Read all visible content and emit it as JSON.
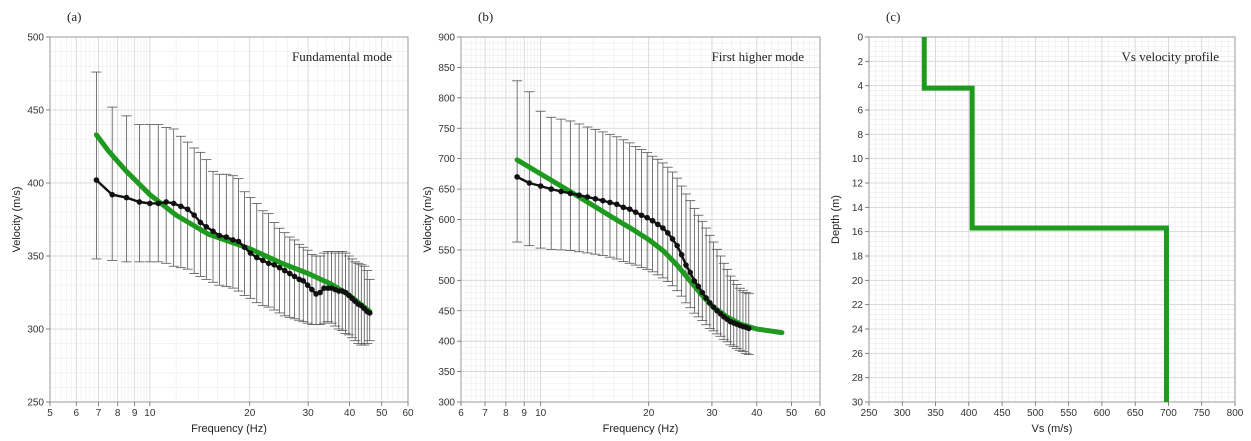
{
  "figure": {
    "colors": {
      "model": "#1e9a1e",
      "observed": "#111111",
      "errorbar": "#555555",
      "grid_major": "#d4d4d4",
      "grid_minor": "#ececec",
      "frame": "#9a9a9a"
    }
  },
  "chart_data": [
    {
      "type": "line",
      "panel_label": "(a)",
      "title": "Fundamental mode",
      "xlabel": "Frequency (Hz)",
      "ylabel": "Velocity (m/s)",
      "x_scale": "log",
      "xlim": [
        5,
        60
      ],
      "ylim": [
        250,
        500
      ],
      "x_tick_labels": [
        "5",
        "6",
        "7",
        "8",
        "9",
        "10",
        "20",
        "30",
        "40",
        "50",
        "60"
      ],
      "x_ticks": [
        5,
        6,
        7,
        8,
        9,
        10,
        20,
        30,
        40,
        50,
        60
      ],
      "y_ticks": [
        250,
        300,
        350,
        400,
        450,
        500
      ],
      "y_tick_labels": [
        "250",
        "300",
        "350",
        "400",
        "450",
        "500"
      ],
      "series": [
        {
          "kind": "model",
          "x": [
            6.9,
            7.5,
            8.5,
            10,
            12,
            15,
            20,
            25,
            30,
            35,
            40,
            46
          ],
          "y": [
            433,
            422,
            408,
            392,
            378,
            365,
            355,
            345,
            338,
            331,
            323,
            312
          ]
        },
        {
          "kind": "observed",
          "x": [
            6.9,
            7.7,
            8.5,
            9.3,
            10.0,
            10.6,
            11.2,
            11.8,
            12.4,
            13.0,
            13.6,
            14.2,
            14.8,
            15.5,
            16.2,
            17.0,
            17.8,
            18.5,
            19.3,
            20.1,
            21.0,
            21.9,
            22.8,
            23.7,
            24.6,
            25.5,
            26.4,
            27.3,
            28.2,
            29.0,
            29.9,
            30.8,
            31.7,
            32.6,
            33.5,
            34.4,
            35.3,
            36.2,
            37.1,
            38.0,
            38.9,
            39.8,
            40.7,
            41.6,
            42.5,
            43.4,
            44.3,
            45.2,
            46.0
          ],
          "y": [
            402,
            392,
            390,
            387,
            386,
            386,
            387,
            386,
            384,
            382,
            378,
            373,
            370,
            367,
            364,
            363,
            361,
            360,
            356,
            352,
            349,
            347,
            345,
            344,
            342,
            340,
            338,
            336,
            334,
            333,
            330,
            327,
            324,
            325,
            328,
            328,
            328,
            327,
            326,
            326,
            325,
            323,
            321,
            319,
            317,
            316,
            314,
            312,
            311
          ],
          "error": [
            [
              348,
              476
            ],
            [
              347,
              452
            ],
            [
              346,
              446
            ],
            [
              346,
              440
            ],
            [
              346,
              440
            ],
            [
              346,
              440
            ],
            [
              345,
              438
            ],
            [
              343,
              437
            ],
            [
              342,
              432
            ],
            [
              341,
              428
            ],
            [
              338,
              424
            ],
            [
              336,
              421
            ],
            [
              334,
              416
            ],
            [
              332,
              408
            ],
            [
              330,
              406
            ],
            [
              329,
              406
            ],
            [
              328,
              405
            ],
            [
              326,
              403
            ],
            [
              323,
              394
            ],
            [
              321,
              390
            ],
            [
              318,
              386
            ],
            [
              316,
              381
            ],
            [
              315,
              379
            ],
            [
              313,
              373
            ],
            [
              311,
              369
            ],
            [
              309,
              366
            ],
            [
              308,
              363
            ],
            [
              307,
              361
            ],
            [
              306,
              358
            ],
            [
              305,
              356
            ],
            [
              304,
              354
            ],
            [
              303,
              351
            ],
            [
              303,
              350
            ],
            [
              303,
              350
            ],
            [
              304,
              352
            ],
            [
              305,
              353
            ],
            [
              304,
              353
            ],
            [
              302,
              352
            ],
            [
              300,
              353
            ],
            [
              299,
              353
            ],
            [
              297,
              352
            ],
            [
              296,
              350
            ],
            [
              294,
              348
            ],
            [
              292,
              346
            ],
            [
              290,
              345
            ],
            [
              289,
              344
            ],
            [
              289,
              343
            ],
            [
              290,
              340
            ],
            [
              292,
              334
            ]
          ]
        }
      ]
    },
    {
      "type": "line",
      "panel_label": "(b)",
      "title": "First higher mode",
      "xlabel": "Frequency (Hz)",
      "ylabel": "Velocity (m/s)",
      "x_scale": "log",
      "xlim": [
        6,
        60
      ],
      "ylim": [
        300,
        900
      ],
      "x_tick_labels": [
        "6",
        "7",
        "8",
        "9",
        "10",
        "20",
        "30",
        "40",
        "50",
        "60"
      ],
      "x_ticks": [
        6,
        7,
        8,
        9,
        10,
        20,
        30,
        40,
        50,
        60
      ],
      "y_ticks": [
        300,
        350,
        400,
        450,
        500,
        550,
        600,
        650,
        700,
        750,
        800,
        850,
        900
      ],
      "y_tick_labels": [
        "300",
        "350",
        "400",
        "450",
        "500",
        "550",
        "600",
        "650",
        "700",
        "750",
        "800",
        "850",
        "900"
      ],
      "series": [
        {
          "kind": "model",
          "x": [
            8.6,
            10,
            12,
            14,
            16,
            18,
            20,
            22,
            24,
            26,
            28,
            30,
            33,
            36,
            40,
            47
          ],
          "y": [
            698,
            675,
            647,
            623,
            602,
            584,
            567,
            548,
            525,
            500,
            477,
            458,
            440,
            428,
            420,
            414
          ],
          "draw_x": [
            8.6,
            10,
            12,
            14,
            16,
            18,
            20,
            22,
            24,
            26,
            28,
            30,
            33,
            36,
            40,
            47
          ]
        },
        {
          "kind": "observed",
          "x": [
            8.6,
            9.3,
            10.0,
            10.7,
            11.4,
            12.1,
            12.8,
            13.5,
            14.2,
            14.9,
            15.6,
            16.3,
            17.0,
            17.7,
            18.4,
            19.1,
            19.8,
            20.5,
            21.2,
            21.9,
            22.6,
            23.3,
            24.0,
            24.7,
            25.4,
            26.1,
            26.8,
            27.5,
            28.2,
            28.9,
            29.6,
            30.3,
            31.0,
            31.7,
            32.4,
            33.1,
            33.8,
            34.5,
            35.2,
            35.9,
            36.6,
            37.3,
            38.0
          ],
          "y": [
            670,
            660,
            655,
            650,
            646,
            643,
            640,
            637,
            634,
            631,
            628,
            625,
            620,
            617,
            612,
            607,
            603,
            598,
            592,
            586,
            578,
            568,
            557,
            542,
            525,
            513,
            499,
            490,
            480,
            471,
            463,
            456,
            450,
            445,
            440,
            436,
            432,
            430,
            428,
            426,
            424,
            423,
            421
          ],
          "error": [
            [
              563,
              828
            ],
            [
              557,
              810
            ],
            [
              553,
              778
            ],
            [
              551,
              768
            ],
            [
              550,
              765
            ],
            [
              549,
              762
            ],
            [
              547,
              757
            ],
            [
              545,
              752
            ],
            [
              543,
              748
            ],
            [
              541,
              744
            ],
            [
              538,
              740
            ],
            [
              535,
              736
            ],
            [
              531,
              731
            ],
            [
              528,
              726
            ],
            [
              525,
              720
            ],
            [
              521,
              715
            ],
            [
              518,
              710
            ],
            [
              514,
              704
            ],
            [
              509,
              699
            ],
            [
              504,
              693
            ],
            [
              498,
              686
            ],
            [
              491,
              678
            ],
            [
              483,
              668
            ],
            [
              474,
              655
            ],
            [
              463,
              642
            ],
            [
              455,
              631
            ],
            [
              446,
              618
            ],
            [
              440,
              607
            ],
            [
              434,
              597
            ],
            [
              427,
              586
            ],
            [
              421,
              574
            ],
            [
              417,
              563
            ],
            [
              412,
              551
            ],
            [
              408,
              540
            ],
            [
              403,
              528
            ],
            [
              399,
              518
            ],
            [
              394,
              507
            ],
            [
              391,
              500
            ],
            [
              388,
              493
            ],
            [
              385,
              487
            ],
            [
              383,
              483
            ],
            [
              380,
              480
            ],
            [
              378,
              478
            ]
          ]
        }
      ]
    },
    {
      "type": "line",
      "panel_label": "(c)",
      "title": "Vs velocity profile",
      "xlabel": "Vs (m/s)",
      "ylabel": "Depth (m)",
      "xlim": [
        250,
        800
      ],
      "ylim": [
        30,
        0
      ],
      "y_inverted": true,
      "x_ticks": [
        250,
        300,
        350,
        400,
        450,
        500,
        550,
        600,
        650,
        700,
        750,
        800
      ],
      "x_tick_labels": [
        "250",
        "300",
        "350",
        "400",
        "450",
        "500",
        "550",
        "600",
        "650",
        "700",
        "750",
        "800"
      ],
      "y_ticks": [
        0,
        2,
        4,
        6,
        8,
        10,
        12,
        14,
        16,
        18,
        20,
        22,
        24,
        26,
        28,
        30
      ],
      "y_tick_labels": [
        "0",
        "2",
        "4",
        "6",
        "8",
        "10",
        "12",
        "14",
        "16",
        "18",
        "20",
        "22",
        "24",
        "26",
        "28",
        "30"
      ],
      "series": [
        {
          "kind": "model",
          "layers": [
            {
              "vs": 333,
              "top": 0,
              "bottom": 4.2
            },
            {
              "vs": 405,
              "top": 4.2,
              "bottom": 15.7
            },
            {
              "vs": 697,
              "top": 15.7,
              "bottom": 30
            }
          ]
        }
      ]
    }
  ]
}
